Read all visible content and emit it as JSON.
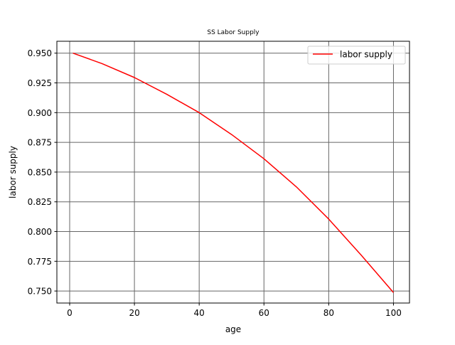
{
  "chart_data": {
    "type": "line",
    "title": "SS Labor Supply",
    "xlabel": "age",
    "ylabel": "labor supply",
    "xlim": [
      -3.95,
      104.95
    ],
    "ylim": [
      0.7399,
      0.96
    ],
    "xticks": [
      0,
      20,
      40,
      60,
      80,
      100
    ],
    "yticks": [
      0.75,
      0.775,
      0.8,
      0.825,
      0.85,
      0.875,
      0.9,
      0.925,
      0.95
    ],
    "xtick_labels": [
      "0",
      "20",
      "40",
      "60",
      "80",
      "100"
    ],
    "ytick_labels": [
      "0.750",
      "0.775",
      "0.800",
      "0.825",
      "0.850",
      "0.875",
      "0.900",
      "0.925",
      "0.950"
    ],
    "grid": true,
    "legend_position": "top-right",
    "series": [
      {
        "name": "labor supply",
        "color": "#ff0000",
        "x": [
          1,
          10,
          20,
          30,
          40,
          50,
          60,
          70,
          80,
          90,
          100
        ],
        "y": [
          0.95,
          0.9412,
          0.9295,
          0.9154,
          0.9,
          0.8816,
          0.8612,
          0.8376,
          0.8105,
          0.7803,
          0.7487
        ]
      }
    ]
  }
}
